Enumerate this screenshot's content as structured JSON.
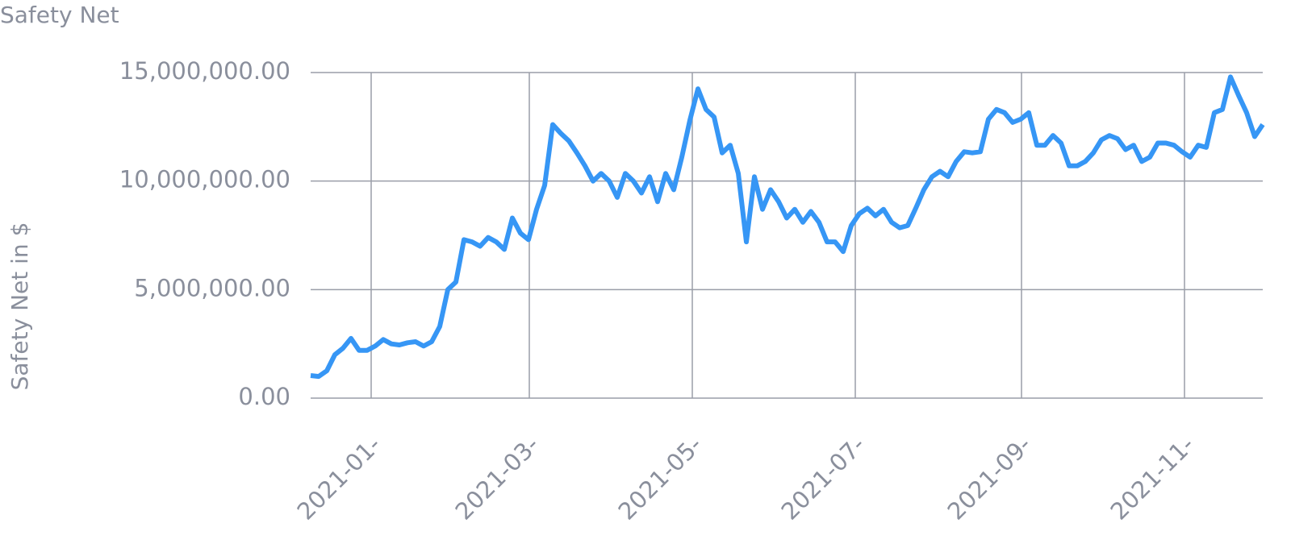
{
  "chart_data": {
    "type": "line",
    "title": "Safety Net",
    "y_label": "Safety Net in $",
    "color": "#3696f5",
    "grid": true,
    "xlim": [
      0,
      118
    ],
    "xticks": [
      {
        "value": 7.5,
        "label": "2021-01-"
      },
      {
        "value": 27.1,
        "label": "2021-03-"
      },
      {
        "value": 47.3,
        "label": "2021-05-"
      },
      {
        "value": 67.5,
        "label": "2021-07-"
      },
      {
        "value": 88.1,
        "label": "2021-09-"
      },
      {
        "value": 108.3,
        "label": "2021-11-"
      }
    ],
    "ylim": [
      0,
      15000000
    ],
    "yticks": [
      {
        "value": 0,
        "label": "0.00"
      },
      {
        "value": 5000000,
        "label": "5,000,000.00"
      },
      {
        "value": 10000000,
        "label": "10,000,000.00"
      },
      {
        "value": 15000000,
        "label": "15,000,000.00"
      }
    ],
    "values": [
      1040000,
      1000000,
      1260000,
      2000000,
      2300000,
      2750000,
      2200000,
      2200000,
      2400000,
      2700000,
      2500000,
      2450000,
      2550000,
      2600000,
      2400000,
      2600000,
      3300000,
      5000000,
      5350000,
      7300000,
      7200000,
      7000000,
      7400000,
      7200000,
      6850000,
      8300000,
      7600000,
      7300000,
      8700000,
      9800000,
      12600000,
      12200000,
      11850000,
      11300000,
      10700000,
      10000000,
      10350000,
      10000000,
      9250000,
      10350000,
      10000000,
      9450000,
      10200000,
      9050000,
      10350000,
      9600000,
      11100000,
      12800000,
      14250000,
      13300000,
      12950000,
      11300000,
      11650000,
      10350000,
      7200000,
      10200000,
      8700000,
      9600000,
      9050000,
      8300000,
      8700000,
      8100000,
      8600000,
      8100000,
      7200000,
      7200000,
      6750000,
      7950000,
      8500000,
      8750000,
      8400000,
      8700000,
      8100000,
      7850000,
      7950000,
      8750000,
      9600000,
      10200000,
      10450000,
      10200000,
      10900000,
      11350000,
      11300000,
      11350000,
      12850000,
      13300000,
      13150000,
      12700000,
      12850000,
      13150000,
      11650000,
      11650000,
      12100000,
      11750000,
      10700000,
      10700000,
      10900000,
      11300000,
      11900000,
      12100000,
      11950000,
      11450000,
      11650000,
      10900000,
      11100000,
      11750000,
      11750000,
      11650000,
      11350000,
      11100000,
      11650000,
      11550000,
      13150000,
      13300000,
      14800000,
      13950000,
      13150000,
      12050000,
      12600000
    ]
  }
}
